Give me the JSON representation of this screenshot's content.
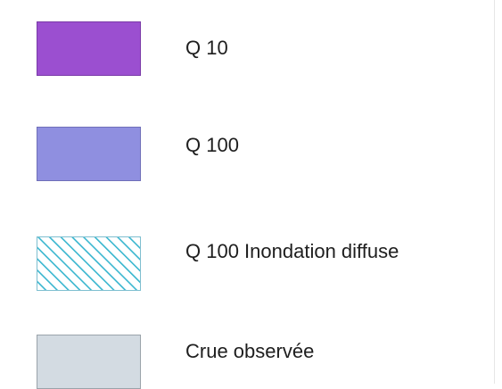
{
  "legend": {
    "items": [
      {
        "label": "Q 10",
        "fill": "#9b4fd0",
        "pattern": "solid",
        "border": "#7a3aa8"
      },
      {
        "label": "Q 100",
        "fill": "#8f8fe0",
        "pattern": "solid",
        "border": "#6f6fb8"
      },
      {
        "label": "Q 100 Inondation diffuse",
        "fill": "#ffffff",
        "pattern": "diagonal-hatch",
        "stroke": "#38b6cf",
        "border": "#7fbfd0"
      },
      {
        "label": "Crue observée",
        "fill": "#d3dbe2",
        "pattern": "solid",
        "border": "#9aa3aa"
      }
    ]
  }
}
